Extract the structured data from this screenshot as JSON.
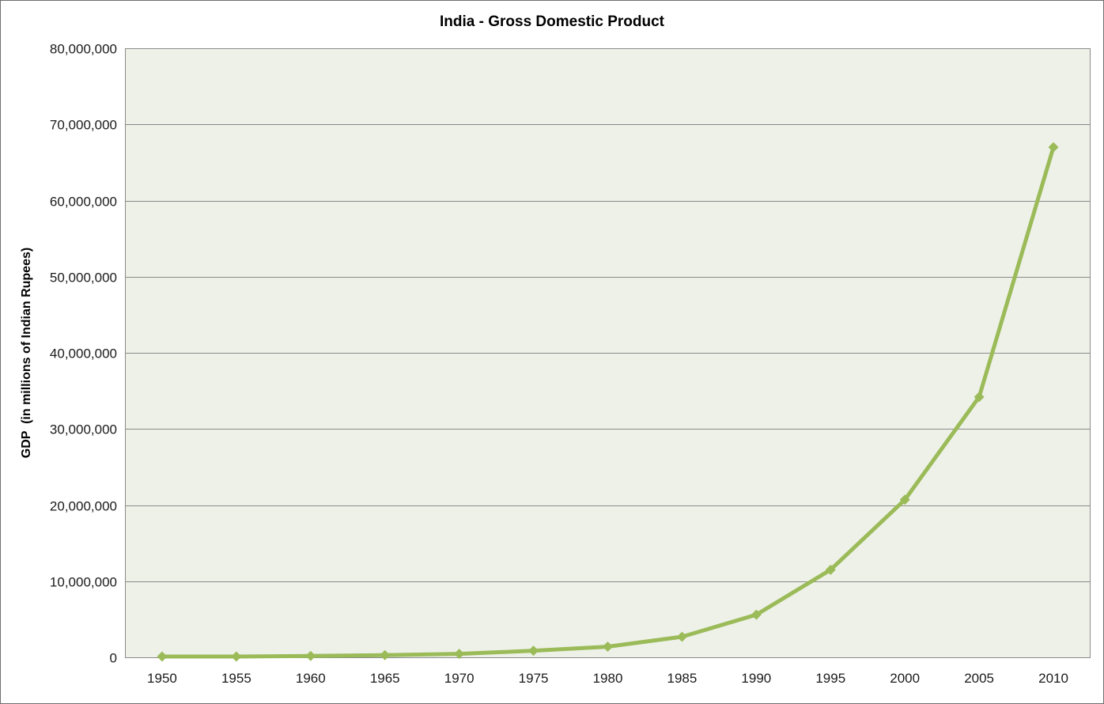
{
  "window": {
    "background": "#ffffff",
    "border_color": "#6e6e6e"
  },
  "chart_data": {
    "type": "line",
    "title": "India - Gross Domestic Product",
    "ylabel": "GDP  (in millions of Indian Rupees)",
    "xlabel": "",
    "categories": [
      "1950",
      "1955",
      "1960",
      "1965",
      "1970",
      "1975",
      "1980",
      "1985",
      "1990",
      "1995",
      "2000",
      "2005",
      "2010"
    ],
    "values": [
      100000,
      110000,
      180000,
      280000,
      450000,
      870000,
      1400000,
      2700000,
      5600000,
      11500000,
      20700000,
      34200000,
      67000000
    ],
    "series_name": "GDP",
    "ylim": [
      0,
      80000000
    ],
    "ytick_step": 10000000,
    "ytick_labels": [
      "0",
      "10,000,000",
      "20,000,000",
      "30,000,000",
      "40,000,000",
      "50,000,000",
      "60,000,000",
      "70,000,000",
      "80,000,000"
    ],
    "grid": true,
    "legend": false,
    "marker": "diamond",
    "colors": {
      "line": "#9BBB59",
      "marker": "#9BBB59",
      "plot_background": "#EEF1E8",
      "gridline": "#8a8a8a",
      "axis": "#8a8a8a",
      "tick_text": "#1a1a1a",
      "title_text": "#000000"
    }
  }
}
